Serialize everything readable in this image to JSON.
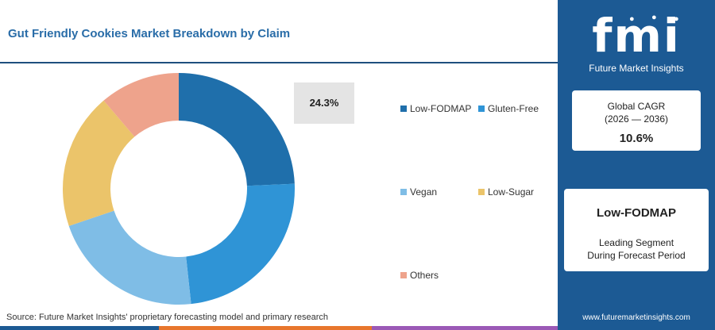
{
  "header": {
    "title": "Gut Friendly Cookies Market Breakdown by Claim"
  },
  "chart_data": {
    "type": "pie",
    "donut": true,
    "categories": [
      "Low-FODMAP",
      "Gluten-Free",
      "Vegan",
      "Low-Sugar",
      "Others"
    ],
    "values": [
      24.3,
      24.0,
      21.5,
      19.0,
      11.2
    ],
    "colors": [
      "#1f6fab",
      "#2f94d6",
      "#7fbde6",
      "#ebc46a",
      "#eea38c"
    ],
    "highlight_label": "24.3%",
    "legend_position": "right"
  },
  "legend": [
    {
      "label": "Low-FODMAP",
      "color": "#1f6fab"
    },
    {
      "label": "Gluten-Free",
      "color": "#2f94d6"
    },
    {
      "label": "Vegan",
      "color": "#7fbde6"
    },
    {
      "label": "Low-Sugar",
      "color": "#ebc46a"
    },
    {
      "label": "Others",
      "color": "#eea38c"
    }
  ],
  "source": "Source: Future Market Insights' proprietary forecasting model and primary research",
  "sidebar": {
    "logo_text": "fmi",
    "logo_subtitle": "Future Market Insights",
    "cagr_label_line1": "Global CAGR",
    "cagr_label_line2": "(2026 — 2036)",
    "cagr_value": "10.6%",
    "segment_title": "Low-FODMAP",
    "segment_line1": "Leading Segment",
    "segment_line2": "During Forecast Period",
    "website": "www.futuremarketinsights.com",
    "background_color": "#1c5a94"
  },
  "footer_colors": [
    "#1c5a94",
    "#e8762c",
    "#9b59b6",
    "#2f94d6"
  ]
}
